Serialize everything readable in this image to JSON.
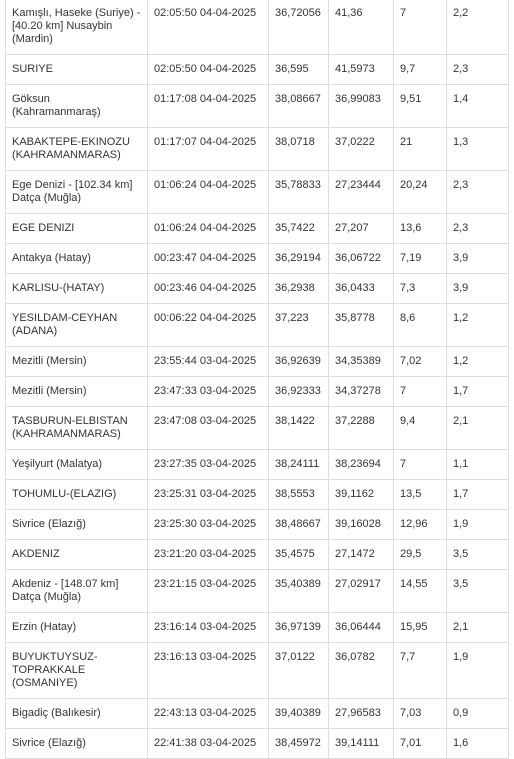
{
  "table": {
    "rows": [
      [
        "Kamışlı, Haseke (Suriye) - [40.20 km] Nusaybin (Mardin)",
        "02:05:50 04-04-2025",
        "36,72056",
        "41,36",
        "7",
        "2,2"
      ],
      [
        "SURIYE",
        "02:05:50 04-04-2025",
        "36,595",
        "41,5973",
        "9,7",
        "2,3"
      ],
      [
        "Göksun (Kahramanmaraş)",
        "01:17:08 04-04-2025",
        "38,08667",
        "36,99083",
        "9,51",
        "1,4"
      ],
      [
        "KABAKTEPE-EKINOZU (KAHRAMANMARAS)",
        "01:17:07 04-04-2025",
        "38,0718",
        "37,0222",
        "21",
        "1,3"
      ],
      [
        "Ege Denizi - [102.34 km] Datça (Muğla)",
        "01:06:24 04-04-2025",
        "35,78833",
        "27,23444",
        "20,24",
        "2,3"
      ],
      [
        "EGE DENIZI",
        "01:06:24 04-04-2025",
        "35,7422",
        "27,207",
        "13,6",
        "2,3"
      ],
      [
        "Antakya (Hatay)",
        "00:23:47 04-04-2025",
        "36,29194",
        "36,06722",
        "7,19",
        "3,9"
      ],
      [
        "KARLISU-(HATAY)",
        "00:23:46 04-04-2025",
        "36,2938",
        "36,0433",
        "7,3",
        "3,9"
      ],
      [
        "YESILDAM-CEYHAN (ADANA)",
        "00:06:22 04-04-2025",
        "37,223",
        "35,8778",
        "8,6",
        "1,2"
      ],
      [
        "Mezitli (Mersin)",
        "23:55:44 03-04-2025",
        "36,92639",
        "34,35389",
        "7,02",
        "1,2"
      ],
      [
        "Mezitli (Mersin)",
        "23:47:33 03-04-2025",
        "36,92333",
        "34,37278",
        "7",
        "1,7"
      ],
      [
        "TASBURUN-ELBISTAN (KAHRAMANMARAS)",
        "23:47:08 03-04-2025",
        "38,1422",
        "37,2288",
        "9,4",
        "2,1"
      ],
      [
        "Yeşilyurt (Malatya)",
        "23:27:35 03-04-2025",
        "38,24111",
        "38,23694",
        "7",
        "1,1"
      ],
      [
        "TOHUMLU-(ELAZIG)",
        "23:25:31 03-04-2025",
        "38,5553",
        "39,1162",
        "13,5",
        "1,7"
      ],
      [
        "Sivrice (Elazığ)",
        "23:25:30 03-04-2025",
        "38,48667",
        "39,16028",
        "12,96",
        "1,9"
      ],
      [
        "AKDENIZ",
        "23:21:20 03-04-2025",
        "35,4575",
        "27,1472",
        "29,5",
        "3,5"
      ],
      [
        "Akdeniz - [148.07 km] Datça (Muğla)",
        "23:21:15 03-04-2025",
        "35,40389",
        "27,02917",
        "14,55",
        "3,5"
      ],
      [
        "Erzin (Hatay)",
        "23:16:14 03-04-2025",
        "36,97139",
        "36,06444",
        "15,95",
        "2,1"
      ],
      [
        "BUYUKTUYSUZ-TOPRAKKALE (OSMANIYE)",
        "23:16:13 03-04-2025",
        "37,0122",
        "36,0782",
        "7,7",
        "1,9"
      ],
      [
        "Bigadiç (Balıkesir)",
        "22:43:13 03-04-2025",
        "39,40389",
        "27,96583",
        "7,03",
        "0,9"
      ],
      [
        "Sivrice (Elazığ)",
        "22:41:38 03-04-2025",
        "38,45972",
        "39,14111",
        "7,01",
        "1,6"
      ]
    ]
  }
}
